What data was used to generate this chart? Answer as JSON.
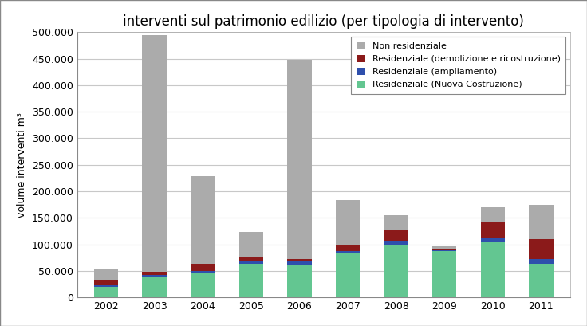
{
  "title": "interventi sul patrimonio edilizio (per tipologia di intervento)",
  "ylabel": "volume interventi m³",
  "years": [
    2002,
    2003,
    2004,
    2005,
    2006,
    2007,
    2008,
    2009,
    2010,
    2011
  ],
  "series": {
    "Residenziale (Nuova Costruzione)": {
      "color": "#63c691",
      "values": [
        20000,
        38000,
        45000,
        63000,
        60000,
        83000,
        100000,
        87000,
        105000,
        63000
      ]
    },
    "Residenziale (ampliamento)": {
      "color": "#2e4fac",
      "values": [
        3000,
        5000,
        5000,
        6000,
        8000,
        5000,
        7000,
        2000,
        8000,
        9000
      ]
    },
    "Residenziale (demolizione e ricostruzione)": {
      "color": "#8b1a1a",
      "values": [
        10000,
        5000,
        13000,
        8000,
        5000,
        10000,
        20000,
        2000,
        30000,
        38000
      ]
    },
    "Non residenziale": {
      "color": "#ababab",
      "values": [
        22000,
        447000,
        165000,
        47000,
        375000,
        85000,
        28000,
        5000,
        27000,
        65000
      ]
    }
  },
  "ylim": [
    0,
    500000
  ],
  "ytick_step": 50000,
  "background_color": "#ffffff",
  "plot_bg_color": "#ffffff",
  "grid_color": "#c8c8c8",
  "border_color": "#aaaaaa",
  "legend_order": [
    "Non residenziale",
    "Residenziale (demolizione e ricostruzione)",
    "Residenziale (ampliamento)",
    "Residenziale (Nuova Costruzione)"
  ],
  "bar_width": 0.5,
  "title_fontsize": 12,
  "axis_fontsize": 9,
  "tick_fontsize": 9,
  "legend_fontsize": 8
}
